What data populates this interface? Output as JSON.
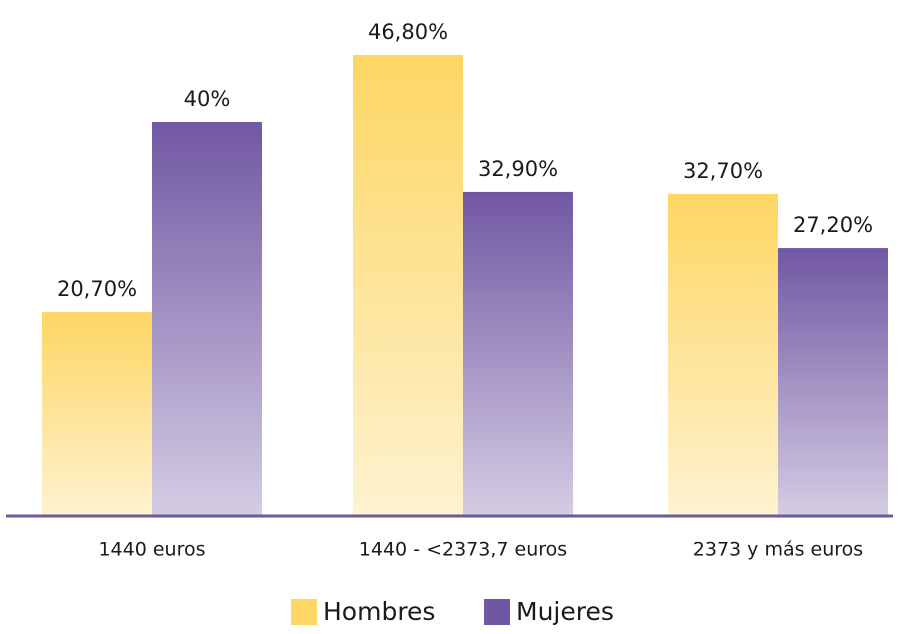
{
  "chart_data": {
    "type": "bar",
    "categories": [
      "1440 euros",
      "1440 - <2373,7 euros",
      "2373 y más euros"
    ],
    "series": [
      {
        "name": "Hombres",
        "color": "#fdd663",
        "values": [
          20.7,
          46.8,
          32.7
        ],
        "value_labels": [
          "20,70%",
          "46,80%",
          "32,70%"
        ]
      },
      {
        "name": "Mujeres",
        "color": "#7157a3",
        "values": [
          40,
          32.9,
          27.2
        ],
        "value_labels": [
          "40%",
          "32,90%",
          "27,20%"
        ]
      }
    ]
  }
}
